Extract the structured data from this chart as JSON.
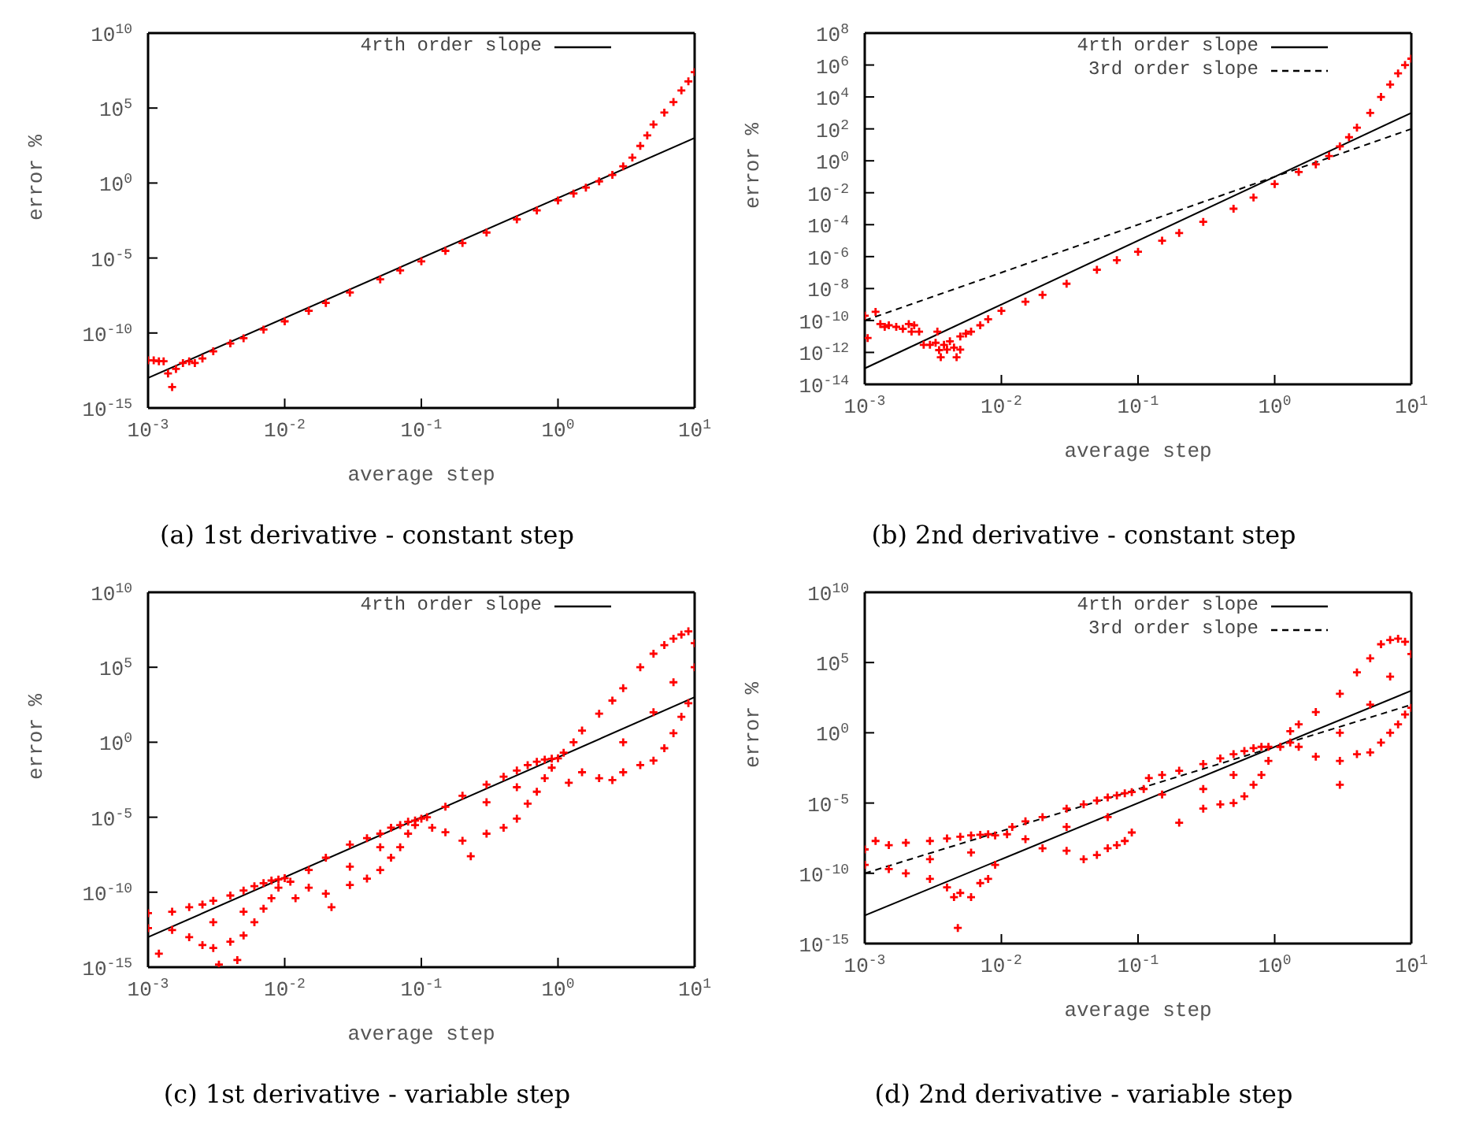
{
  "chart_data": [
    {
      "type": "scatter",
      "title": "(a) 1st derivative - constant step",
      "xlabel": "average step",
      "ylabel": "error %",
      "log": "xy",
      "grid": false,
      "legend": "top right",
      "xlim": [
        0.001,
        10
      ],
      "xticks": [
        {
          "value": 0.001,
          "label": "10$^{-3}$"
        },
        {
          "value": 0.01,
          "label": "10$^{-2}$"
        },
        {
          "value": 0.1,
          "label": "10$^{-1}$"
        },
        {
          "value": 1,
          "label": "10$^{0}$"
        },
        {
          "value": 10,
          "label": "10$^{1}$"
        }
      ],
      "ylim": [
        1e-15,
        10000000000.0
      ],
      "yticks": [
        {
          "value": 1e-15,
          "label": "10$^{-15}$"
        },
        {
          "value": 1e-10,
          "label": "10$^{-10}$"
        },
        {
          "value": 1e-05,
          "label": "10$^{-5}$"
        },
        {
          "value": 1,
          "label": "10$^{0}$"
        },
        {
          "value": 100000.0,
          "label": "10$^{5}$"
        },
        {
          "value": 10000000000.0,
          "label": "10$^{10}$"
        }
      ],
      "series": [
        {
          "type": "scatter",
          "color": "#ff0000",
          "marker": "cross",
          "x": [
            0.001,
            0.0011,
            0.0012,
            0.0013,
            0.0014,
            0.0015,
            0.0016,
            0.0018,
            0.002,
            0.0022,
            0.0025,
            0.003,
            0.004,
            0.005,
            0.007,
            0.01,
            0.015,
            0.02,
            0.03,
            0.05,
            0.07,
            0.1,
            0.15,
            0.2,
            0.3,
            0.5,
            0.7,
            1,
            1.3,
            1.6,
            2,
            2.5,
            3,
            3.5,
            4,
            4.5,
            5,
            6,
            7,
            8,
            9,
            10
          ],
          "values": [
            1.5e-12,
            1.5e-12,
            1.3e-12,
            1.3e-12,
            2e-13,
            2.5e-14,
            4e-13,
            1e-12,
            1.3e-12,
            1e-12,
            2e-12,
            6e-12,
            2e-11,
            4.5e-11,
            1.7e-10,
            6e-10,
            3e-09,
            1e-08,
            5e-08,
            3.8e-07,
            1.5e-06,
            6e-06,
            3e-05,
            0.0001,
            0.0005,
            0.0038,
            0.015,
            0.07,
            0.2,
            0.5,
            1.3,
            3.5,
            13,
            50,
            300,
            1500,
            8000,
            50000,
            250000,
            1500000,
            6000000,
            25000000
          ]
        },
        {
          "type": "line",
          "name": "4rth order slope",
          "color": "#000000",
          "line_style": "solid",
          "x": [
            0.001,
            10
          ],
          "values": [
            1e-13,
            1000
          ]
        }
      ]
    },
    {
      "type": "scatter",
      "title": "(b) 2nd derivative - constant step",
      "xlabel": "average step",
      "ylabel": "error %",
      "log": "xy",
      "grid": false,
      "legend": "top right",
      "xlim": [
        0.001,
        10
      ],
      "xticks": [
        {
          "value": 0.001,
          "label": "10$^{-3}$"
        },
        {
          "value": 0.01,
          "label": "10$^{-2}$"
        },
        {
          "value": 0.1,
          "label": "10$^{-1}$"
        },
        {
          "value": 1,
          "label": "10$^{0}$"
        },
        {
          "value": 10,
          "label": "10$^{1}$"
        }
      ],
      "ylim": [
        1e-14,
        100000000.0
      ],
      "yticks": [
        {
          "value": 1e-14,
          "label": "10$^{-14}$"
        },
        {
          "value": 1e-12,
          "label": "10$^{-12}$"
        },
        {
          "value": 1e-10,
          "label": "10$^{-10}$"
        },
        {
          "value": 1e-08,
          "label": "10$^{-8}$"
        },
        {
          "value": 1e-06,
          "label": "10$^{-6}$"
        },
        {
          "value": 0.0001,
          "label": "10$^{-4}$"
        },
        {
          "value": 0.01,
          "label": "10$^{-2}$"
        },
        {
          "value": 1,
          "label": "10$^{0}$"
        },
        {
          "value": 100,
          "label": "10$^{2}$"
        },
        {
          "value": 10000,
          "label": "10$^{4}$"
        },
        {
          "value": 1000000,
          "label": "10$^{6}$"
        },
        {
          "value": 100000000,
          "label": "10$^{8}$"
        }
      ],
      "series": [
        {
          "type": "scatter",
          "color": "#ff0000",
          "marker": "cross",
          "x": [
            0.001,
            0.00105,
            0.0012,
            0.0013,
            0.0014,
            0.0015,
            0.0017,
            0.0019,
            0.0021,
            0.0022,
            0.0023,
            0.0025,
            0.0027,
            0.003,
            0.0033,
            0.0034,
            0.0035,
            0.0036,
            0.0038,
            0.004,
            0.0042,
            0.0045,
            0.0047,
            0.005,
            0.005,
            0.0055,
            0.006,
            0.007,
            0.008,
            0.01,
            0.015,
            0.02,
            0.03,
            0.05,
            0.07,
            0.1,
            0.15,
            0.2,
            0.3,
            0.5,
            0.7,
            1,
            1.5,
            2,
            2.5,
            3,
            3.5,
            4,
            5,
            6,
            7,
            8,
            9,
            10
          ],
          "values": [
            2e-10,
            8e-12,
            3.5e-10,
            6e-11,
            4e-11,
            5e-11,
            4e-11,
            3e-11,
            6e-11,
            2e-11,
            5e-11,
            2e-11,
            3e-12,
            3e-12,
            4e-12,
            2e-11,
            1.4e-12,
            5e-13,
            3e-12,
            1.5e-12,
            5e-12,
            2e-12,
            5e-13,
            1e-11,
            1.5e-12,
            1.5e-11,
            2e-11,
            5e-11,
            1.2e-10,
            4e-10,
            1.5e-09,
            4e-09,
            2e-08,
            1.5e-07,
            6e-07,
            2e-06,
            1e-05,
            3e-05,
            0.00015,
            0.001,
            0.005,
            0.035,
            0.2,
            0.6,
            2,
            8,
            30,
            120,
            1000,
            10000,
            60000,
            300000,
            1000000,
            2500000
          ]
        },
        {
          "type": "line",
          "name": "4rth order slope",
          "color": "#000000",
          "line_style": "solid",
          "x": [
            0.001,
            10
          ],
          "values": [
            1e-13,
            1000
          ]
        },
        {
          "type": "line",
          "name": "3rd order slope",
          "color": "#000000",
          "line_style": "dashed",
          "x": [
            0.001,
            10
          ],
          "values": [
            1e-10,
            100
          ]
        }
      ]
    },
    {
      "type": "scatter",
      "title": "(c) 1st derivative - variable step",
      "xlabel": "average step",
      "ylabel": "error %",
      "log": "xy",
      "grid": false,
      "legend": "top right",
      "xlim": [
        0.001,
        10
      ],
      "xticks": [
        {
          "value": 0.001,
          "label": "10$^{-3}$"
        },
        {
          "value": 0.01,
          "label": "10$^{-2}$"
        },
        {
          "value": 0.1,
          "label": "10$^{-1}$"
        },
        {
          "value": 1,
          "label": "10$^{0}$"
        },
        {
          "value": 10,
          "label": "10$^{1}$"
        }
      ],
      "ylim": [
        1e-15,
        10000000000.0
      ],
      "yticks": [
        {
          "value": 1e-15,
          "label": "10$^{-15}$"
        },
        {
          "value": 1e-10,
          "label": "10$^{-10}$"
        },
        {
          "value": 1e-05,
          "label": "10$^{-5}$"
        },
        {
          "value": 1,
          "label": "10$^{0}$"
        },
        {
          "value": 100000.0,
          "label": "10$^{5}$"
        },
        {
          "value": 10000000000.0,
          "label": "10$^{10}$"
        }
      ],
      "series": [
        {
          "type": "scatter",
          "color": "#ff0000",
          "marker": "cross",
          "x": [
            0.001,
            0.001,
            0.0012,
            0.0015,
            0.0015,
            0.002,
            0.002,
            0.0025,
            0.0025,
            0.003,
            0.003,
            0.0033,
            0.004,
            0.004,
            0.0045,
            0.005,
            0.005,
            0.006,
            0.006,
            0.007,
            0.007,
            0.008,
            0.008,
            0.009,
            0.009,
            0.01,
            0.003,
            0.005,
            0.011,
            0.012,
            0.015,
            0.015,
            0.02,
            0.02,
            0.022,
            0.03,
            0.03,
            0.04,
            0.04,
            0.05,
            0.05,
            0.06,
            0.06,
            0.07,
            0.07,
            0.08,
            0.08,
            0.09,
            0.09,
            0.1,
            0.03,
            0.05,
            0.11,
            0.12,
            0.15,
            0.15,
            0.2,
            0.2,
            0.23,
            0.3,
            0.3,
            0.4,
            0.4,
            0.5,
            0.5,
            0.6,
            0.6,
            0.7,
            0.7,
            0.8,
            0.8,
            0.9,
            0.9,
            1,
            0.3,
            0.5,
            1.1,
            1.2,
            1.3,
            1.5,
            1.5,
            2,
            2,
            2.5,
            2.5,
            3,
            3,
            4,
            4,
            5,
            5,
            6,
            6,
            7,
            7,
            8,
            8,
            9,
            9,
            10,
            10,
            3,
            5,
            7
          ],
          "values": [
            4e-12,
            4e-13,
            8e-15,
            5e-12,
            3e-13,
            1e-11,
            1e-13,
            1.5e-11,
            3e-14,
            2.7e-11,
            1.9e-14,
            1.5e-15,
            6e-11,
            5e-14,
            3e-15,
            1.3e-10,
            1.3e-13,
            2.5e-10,
            1e-12,
            4e-10,
            8e-12,
            6e-10,
            4e-11,
            7e-10,
            2e-10,
            8.5e-10,
            1e-12,
            5e-12,
            5e-10,
            4e-11,
            3e-09,
            2e-10,
            2e-08,
            8e-11,
            1e-11,
            1.5e-07,
            3e-10,
            4e-07,
            8e-10,
            8e-07,
            3e-09,
            2e-06,
            2e-08,
            3e-06,
            1e-07,
            5e-06,
            8e-07,
            6e-06,
            3e-06,
            8e-06,
            5e-09,
            1e-07,
            1e-05,
            2e-06,
            5e-05,
            1e-06,
            0.00027,
            2.7e-07,
            2.5e-08,
            0.0015,
            8e-07,
            0.005,
            2e-06,
            0.013,
            8e-06,
            0.03,
            8e-05,
            0.05,
            0.0005,
            0.07,
            0.004,
            0.08,
            0.02,
            0.085,
            0.0001,
            0.001,
            0.2,
            0.002,
            1,
            6,
            0.01,
            80,
            0.004,
            600,
            0.003,
            4000,
            0.01,
            100000,
            0.03,
            800000,
            0.06,
            3000000,
            0.4,
            8000000,
            4,
            15000000,
            50,
            25000000,
            400,
            4000000,
            100000,
            1,
            100,
            10000
          ]
        },
        {
          "type": "line",
          "name": "4rth order slope",
          "color": "#000000",
          "line_style": "solid",
          "x": [
            0.001,
            10
          ],
          "values": [
            1e-13,
            1000
          ]
        }
      ]
    },
    {
      "type": "scatter",
      "title": "(d) 2nd derivative - variable step",
      "xlabel": "average step",
      "ylabel": "error %",
      "log": "xy",
      "grid": false,
      "legend": "top right",
      "xlim": [
        0.001,
        10
      ],
      "xticks": [
        {
          "value": 0.001,
          "label": "10$^{-3}$"
        },
        {
          "value": 0.01,
          "label": "10$^{-2}$"
        },
        {
          "value": 0.1,
          "label": "10$^{-1}$"
        },
        {
          "value": 1,
          "label": "10$^{0}$"
        },
        {
          "value": 10,
          "label": "10$^{1}$"
        }
      ],
      "ylim": [
        1e-15,
        10000000000.0
      ],
      "yticks": [
        {
          "value": 1e-15,
          "label": "10$^{-15}$"
        },
        {
          "value": 1e-10,
          "label": "10$^{-10}$"
        },
        {
          "value": 1e-05,
          "label": "10$^{-5}$"
        },
        {
          "value": 1,
          "label": "10$^{0}$"
        },
        {
          "value": 100000.0,
          "label": "10$^{5}$"
        },
        {
          "value": 10000000000.0,
          "label": "10$^{10}$"
        }
      ],
      "series": [
        {
          "type": "scatter",
          "color": "#ff0000",
          "marker": "cross",
          "x": [
            0.001,
            0.001,
            0.0012,
            0.0015,
            0.0015,
            0.002,
            0.002,
            0.003,
            0.003,
            0.004,
            0.004,
            0.0045,
            0.005,
            0.005,
            0.0048,
            0.006,
            0.006,
            0.007,
            0.007,
            0.008,
            0.008,
            0.009,
            0.009,
            0.003,
            0.006,
            0.011,
            0.012,
            0.015,
            0.015,
            0.02,
            0.02,
            0.03,
            0.03,
            0.04,
            0.04,
            0.05,
            0.05,
            0.06,
            0.06,
            0.07,
            0.07,
            0.08,
            0.08,
            0.09,
            0.09,
            0.03,
            0.06,
            0.11,
            0.12,
            0.15,
            0.15,
            0.2,
            0.2,
            0.3,
            0.3,
            0.4,
            0.4,
            0.5,
            0.5,
            0.6,
            0.6,
            0.7,
            0.7,
            0.8,
            0.8,
            0.9,
            0.9,
            0.3,
            0.5,
            1.1,
            1.3,
            1.3,
            1.5,
            1.5,
            2,
            2,
            3,
            3,
            3,
            4,
            4,
            5,
            5,
            6,
            6,
            7,
            7,
            8,
            8,
            9,
            9,
            10,
            10,
            3,
            5,
            7
          ],
          "values": [
            5e-09,
            4e-10,
            2e-08,
            1e-08,
            2e-10,
            1.5e-08,
            1e-10,
            2e-08,
            4e-11,
            3e-08,
            1e-11,
            2e-12,
            4e-08,
            4e-12,
            1.3e-14,
            5e-08,
            2e-12,
            5.5e-08,
            2e-11,
            6e-08,
            4e-11,
            5e-08,
            4e-10,
            1e-09,
            3e-09,
            6e-08,
            2e-07,
            5e-07,
            2.7e-08,
            1e-06,
            6e-09,
            4e-06,
            4e-09,
            8e-06,
            1e-09,
            1.5e-05,
            2e-09,
            2.5e-05,
            6e-09,
            3.5e-05,
            1e-08,
            5e-05,
            2e-08,
            6e-05,
            8e-08,
            2e-07,
            1e-06,
            0.0001,
            0.0006,
            0.001,
            4e-05,
            0.002,
            4e-07,
            0.006,
            4e-06,
            0.015,
            8e-06,
            0.03,
            1e-05,
            0.05,
            3e-05,
            0.08,
            0.0002,
            0.1,
            0.001,
            0.1,
            0.01,
            0.0001,
            0.001,
            0.1,
            1.3,
            0.2,
            4,
            0.1,
            30,
            0.02,
            600,
            0.0002,
            0.01,
            20000,
            0.03,
            200000,
            0.04,
            2000000,
            0.2,
            4000000,
            1,
            5000000,
            4,
            3000000,
            20,
            400000,
            60,
            1,
            100,
            10000
          ]
        },
        {
          "type": "line",
          "name": "4rth order slope",
          "color": "#000000",
          "line_style": "solid",
          "x": [
            0.001,
            10
          ],
          "values": [
            1e-13,
            1000
          ]
        },
        {
          "type": "line",
          "name": "3rd order slope",
          "color": "#000000",
          "line_style": "dashed",
          "x": [
            0.001,
            10
          ],
          "values": [
            1e-10,
            100
          ]
        }
      ]
    }
  ]
}
